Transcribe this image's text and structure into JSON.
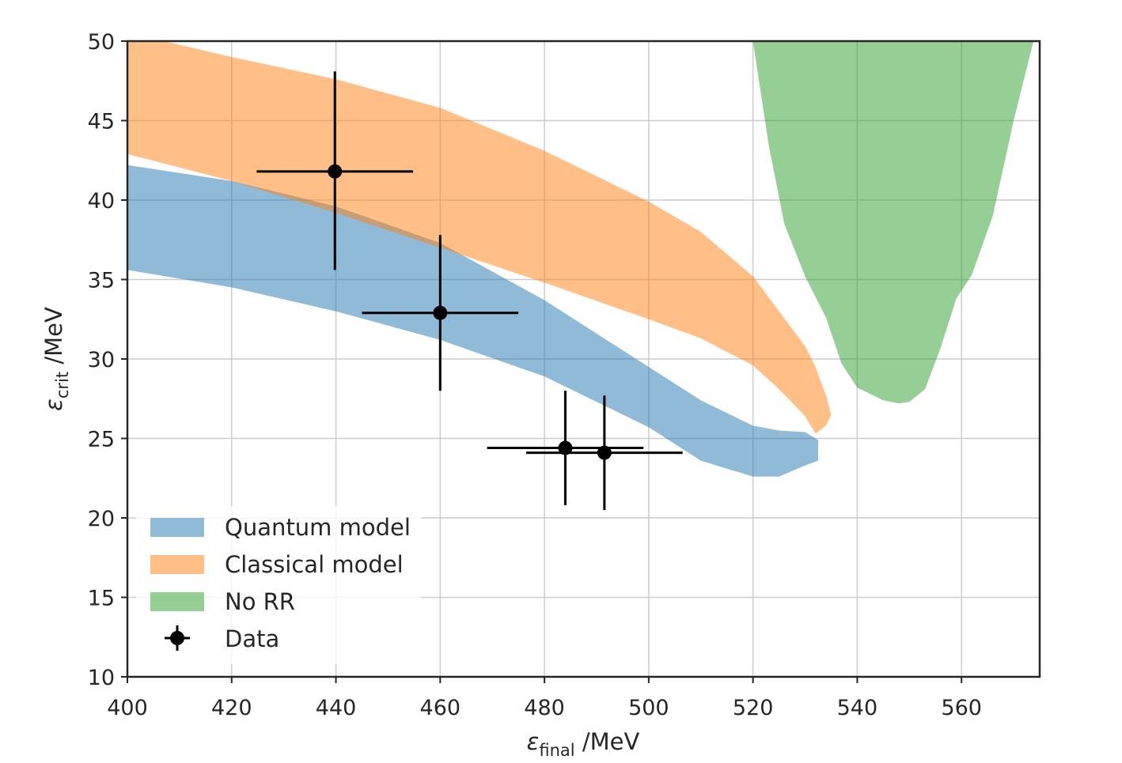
{
  "chart_data": {
    "type": "area",
    "xlabel": {
      "symbol": "ε",
      "sub": "final",
      "unit": " /MeV"
    },
    "ylabel": {
      "symbol": "ε",
      "sub": "crit",
      "unit": " /MeV"
    },
    "xlim": [
      400,
      575
    ],
    "ylim": [
      10,
      50
    ],
    "xticks": [
      400,
      420,
      440,
      460,
      480,
      500,
      520,
      540,
      560
    ],
    "yticks": [
      10,
      15,
      20,
      25,
      30,
      35,
      40,
      45,
      50
    ],
    "grid": true,
    "legend_position": "lower-left",
    "series": [
      {
        "name": "Quantum model",
        "kind": "band",
        "color": "#1f77b4",
        "opacity": 0.5,
        "x": [
          400,
          420,
          440,
          460,
          480,
          500,
          510,
          520,
          525,
          530,
          532.5
        ],
        "lower": [
          35.6,
          34.5,
          33.0,
          31.2,
          28.9,
          25.7,
          23.6,
          22.6,
          22.6,
          23.3,
          23.6
        ],
        "upper": [
          42.2,
          41.2,
          39.6,
          37.3,
          33.7,
          29.5,
          27.4,
          25.8,
          25.5,
          25.4,
          24.9
        ]
      },
      {
        "name": "Classical model",
        "kind": "band",
        "color": "#ff7f0e",
        "opacity": 0.5,
        "x": [
          400,
          407,
          420,
          440,
          460,
          480,
          500,
          510,
          520,
          525,
          530,
          532,
          534,
          535
        ],
        "lower": [
          42.9,
          42.3,
          41.2,
          39.2,
          37.0,
          34.8,
          32.5,
          31.3,
          29.6,
          28.1,
          26.4,
          25.3,
          25.8,
          26.5
        ],
        "upper": [
          50,
          50,
          49.0,
          47.6,
          45.8,
          43.1,
          39.9,
          38.0,
          35.2,
          33.0,
          30.8,
          29.5,
          27.7,
          26.5
        ]
      },
      {
        "name": "No RR",
        "kind": "band",
        "color": "#2ca02c",
        "opacity": 0.5,
        "x": [
          520,
          523,
          526,
          530,
          534,
          537,
          540,
          545,
          548,
          550,
          553,
          556,
          559,
          562,
          566,
          570,
          573.8
        ],
        "lower": [
          50,
          43.5,
          38.5,
          35.2,
          32.6,
          29.7,
          28.2,
          27.4,
          27.2,
          27.3,
          28.1,
          30.7,
          33.8,
          35.3,
          39.0,
          45.0,
          50
        ],
        "upper": [
          50,
          50,
          50,
          50,
          50,
          50,
          50,
          50,
          50,
          50,
          50,
          50,
          50,
          50,
          50,
          50,
          50
        ]
      }
    ],
    "data_points": {
      "name": "Data",
      "color": "#000000",
      "points": [
        {
          "x": 439.8,
          "y": 41.8,
          "xerr": 15.0,
          "yerr_low": 6.2,
          "yerr_high": 6.3
        },
        {
          "x": 460.0,
          "y": 32.9,
          "xerr": 15.0,
          "yerr_low": 4.9,
          "yerr_high": 4.9
        },
        {
          "x": 484.0,
          "y": 24.4,
          "xerr": 15.0,
          "yerr_low": 3.6,
          "yerr_high": 3.6
        },
        {
          "x": 491.5,
          "y": 24.1,
          "xerr": 15.0,
          "yerr_low": 3.6,
          "yerr_high": 3.6
        }
      ]
    }
  }
}
